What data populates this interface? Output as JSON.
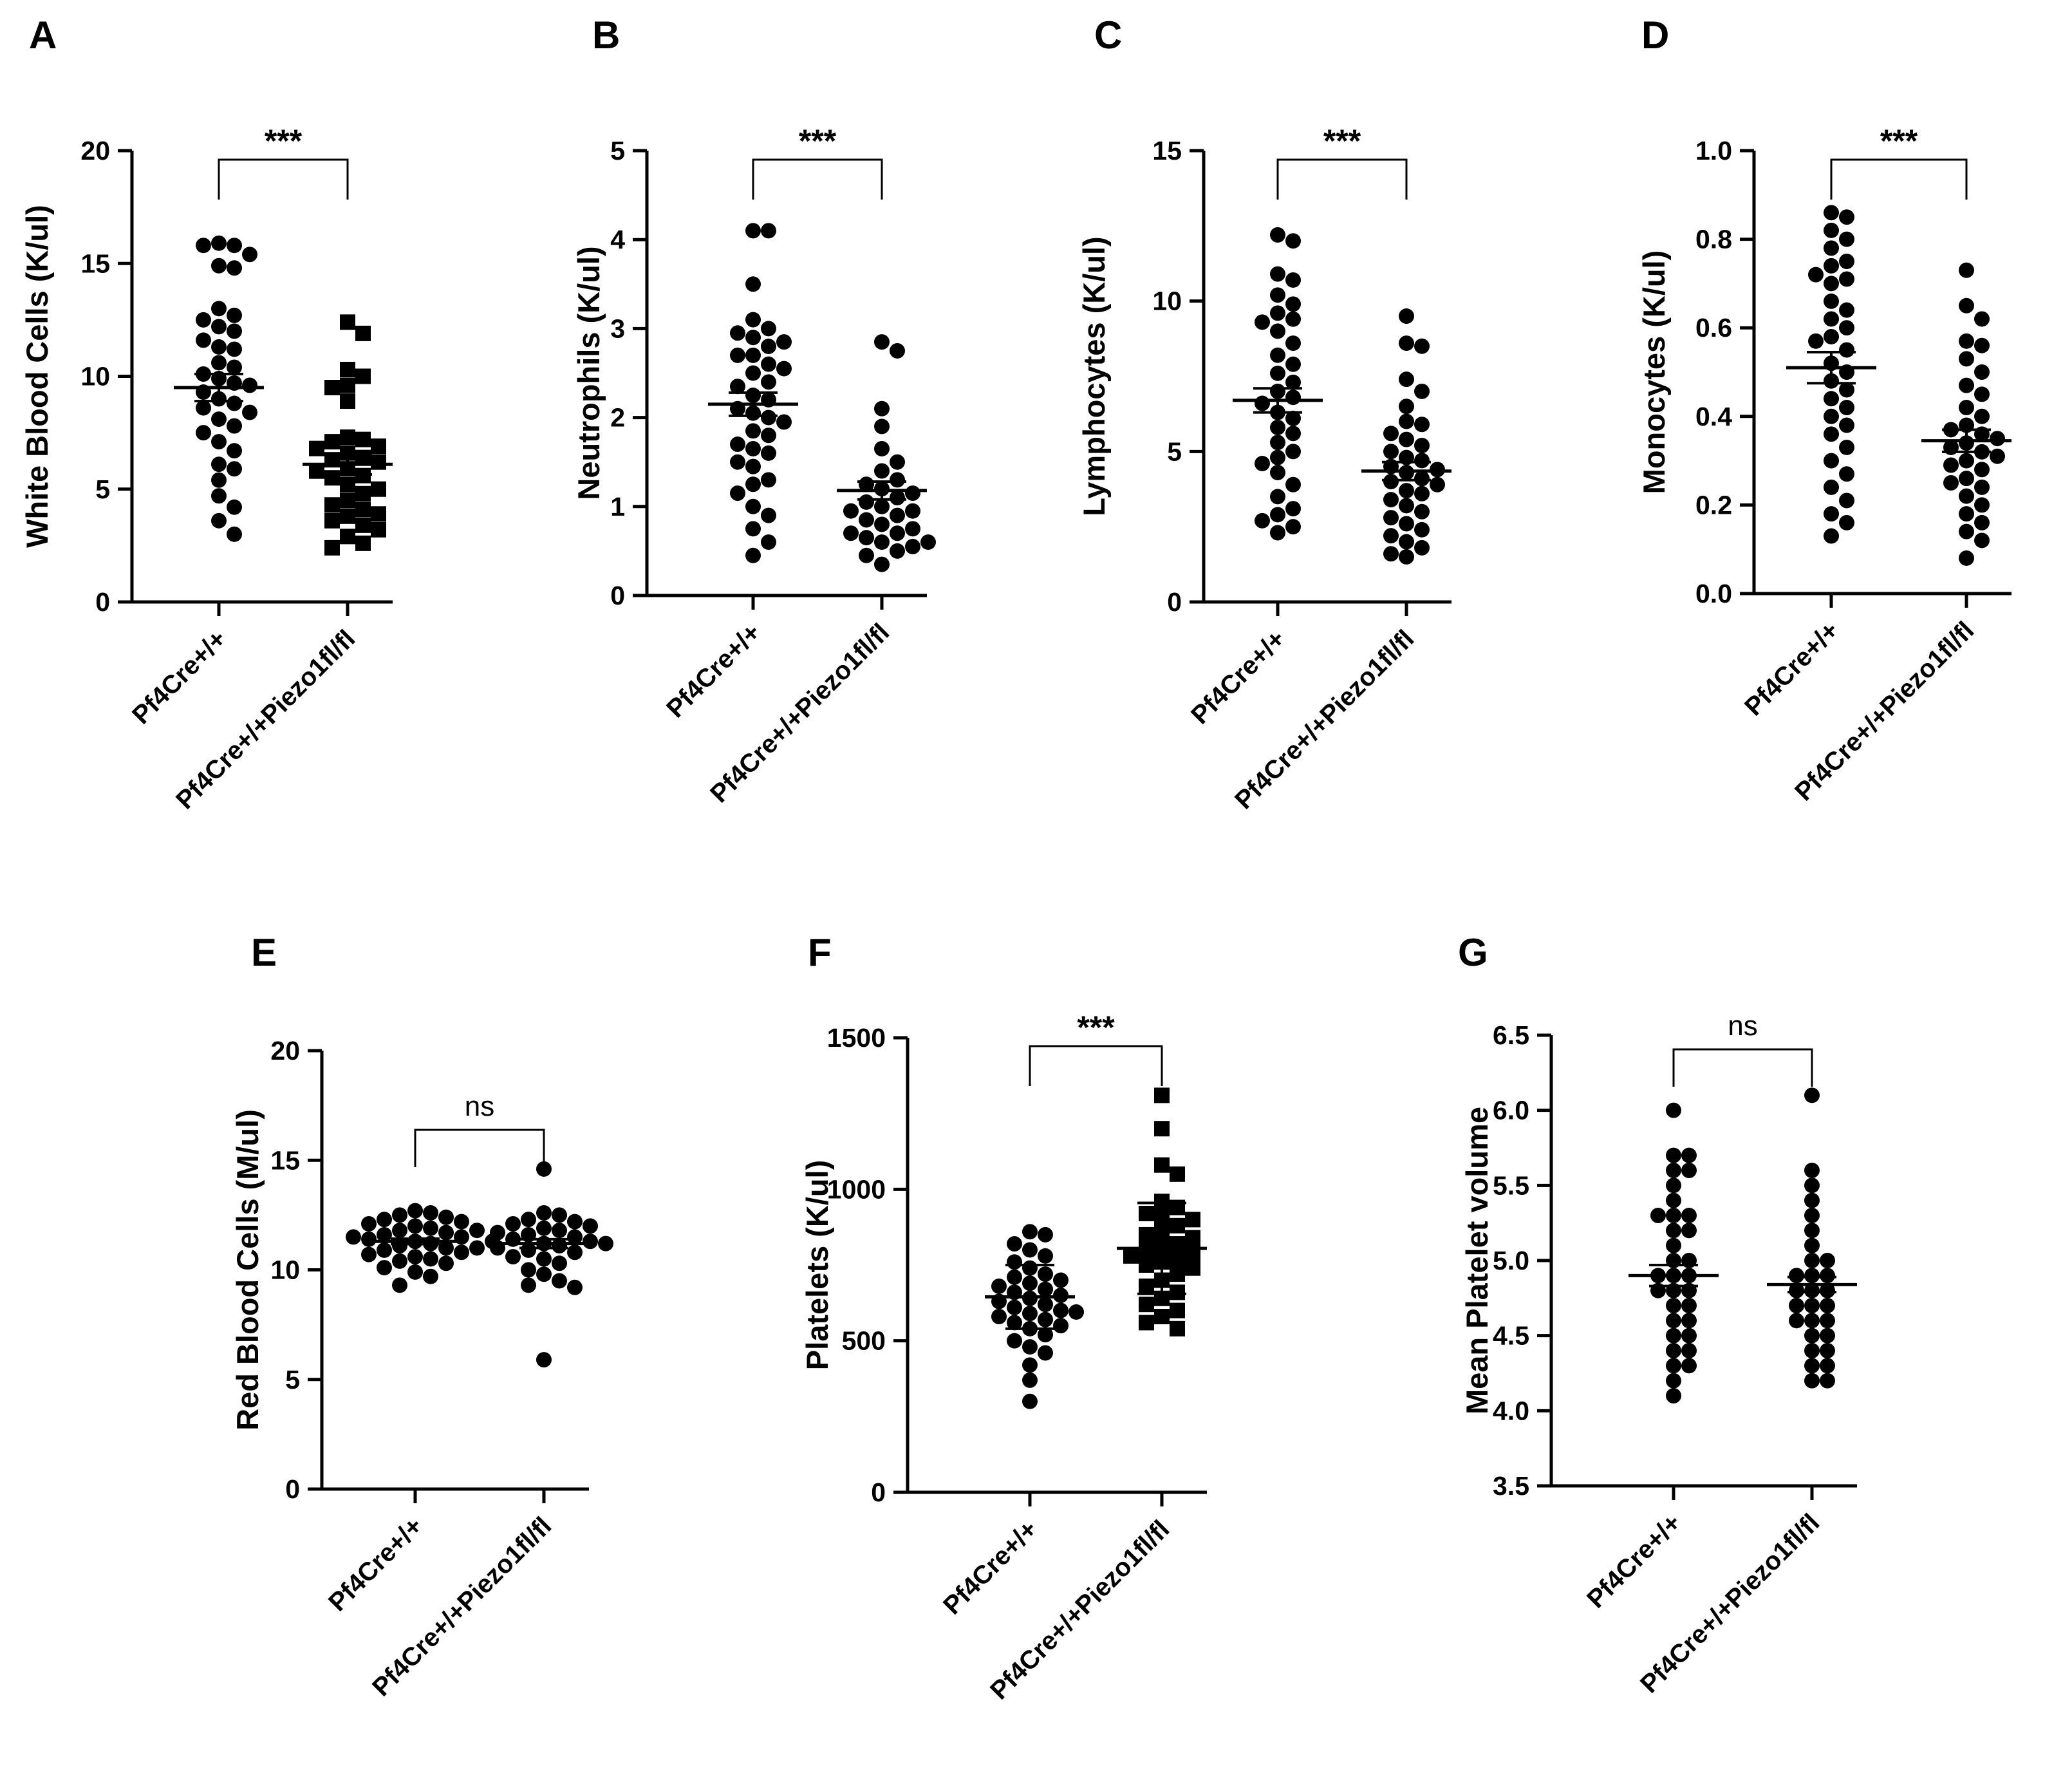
{
  "figure": {
    "categories": [
      "Pf4Cre+/+",
      "Pf4Cre+/+Piezo1fl/fl"
    ]
  },
  "chart_data": [
    {
      "type": "scatter",
      "panel": "A",
      "ylabel": "White Blood Cells (K/ul)",
      "ylim": [
        0,
        20
      ],
      "yticks": [
        0,
        5,
        10,
        15,
        20
      ],
      "significance": "***",
      "categories": [
        "Pf4Cre+/+",
        "Pf4Cre+/+Piezo1fl/fl"
      ],
      "series": [
        {
          "name": "Pf4Cre+/+",
          "marker": "circle",
          "mean": 9.5,
          "sem": 0.6,
          "values": [
            15.9,
            15.8,
            15.8,
            15.4,
            14.9,
            14.8,
            13.0,
            12.7,
            12.5,
            12.2,
            12.0,
            11.6,
            11.3,
            11.2,
            10.6,
            10.4,
            10.1,
            9.9,
            9.7,
            9.6,
            9.3,
            9.0,
            8.8,
            8.6,
            8.4,
            8.1,
            7.8,
            7.5,
            7.1,
            6.7,
            6.1,
            5.9,
            5.4,
            4.7,
            4.2,
            3.6,
            3.0
          ]
        },
        {
          "name": "Pf4Cre+/+Piezo1fl/fl",
          "marker": "square",
          "mean": 6.1,
          "sem": 0.45,
          "values": [
            12.4,
            11.9,
            10.3,
            10.0,
            9.6,
            9.5,
            8.9,
            7.3,
            7.2,
            7.1,
            6.9,
            6.8,
            6.6,
            6.4,
            6.3,
            6.2,
            5.9,
            5.8,
            5.6,
            5.5,
            5.2,
            5.0,
            4.8,
            4.5,
            4.3,
            4.1,
            3.9,
            3.8,
            3.6,
            3.4,
            3.2,
            2.9,
            2.6,
            2.4
          ]
        }
      ]
    },
    {
      "type": "scatter",
      "panel": "B",
      "ylabel": "Neutrophils (K/ul)",
      "ylim": [
        0,
        5
      ],
      "yticks": [
        0,
        1,
        2,
        3,
        4,
        5
      ],
      "significance": "***",
      "categories": [
        "Pf4Cre+/+",
        "Pf4Cre+/+Piezo1fl/fl"
      ],
      "series": [
        {
          "name": "Pf4Cre+/+",
          "marker": "circle",
          "mean": 2.15,
          "sem": 0.13,
          "values": [
            4.1,
            4.1,
            3.5,
            3.1,
            3.0,
            2.95,
            2.9,
            2.85,
            2.8,
            2.7,
            2.7,
            2.6,
            2.55,
            2.5,
            2.4,
            2.35,
            2.25,
            2.2,
            2.1,
            2.05,
            2.0,
            1.95,
            1.85,
            1.8,
            1.7,
            1.65,
            1.6,
            1.5,
            1.45,
            1.3,
            1.25,
            1.15,
            1.0,
            0.9,
            0.75,
            0.6,
            0.45
          ]
        },
        {
          "name": "Pf4Cre+/+Piezo1fl/fl",
          "marker": "circle",
          "mean": 1.18,
          "sem": 0.1,
          "values": [
            2.85,
            2.75,
            2.1,
            1.9,
            1.65,
            1.5,
            1.4,
            1.3,
            1.25,
            1.2,
            1.15,
            1.1,
            1.05,
            1.0,
            0.95,
            0.95,
            0.9,
            0.85,
            0.8,
            0.75,
            0.7,
            0.7,
            0.65,
            0.6,
            0.6,
            0.55,
            0.5,
            0.45,
            0.35
          ]
        }
      ]
    },
    {
      "type": "scatter",
      "panel": "C",
      "ylabel": "Lymphocytes (K/ul)",
      "ylim": [
        0,
        15
      ],
      "yticks": [
        0,
        5,
        10,
        15
      ],
      "significance": "***",
      "categories": [
        "Pf4Cre+/+",
        "Pf4Cre+/+Piezo1fl/fl"
      ],
      "series": [
        {
          "name": "Pf4Cre+/+",
          "marker": "circle",
          "mean": 6.7,
          "sem": 0.4,
          "values": [
            12.2,
            12.0,
            10.9,
            10.7,
            10.2,
            9.9,
            9.6,
            9.4,
            9.3,
            9.0,
            8.6,
            8.2,
            7.9,
            7.6,
            7.3,
            7.0,
            6.8,
            6.6,
            6.3,
            6.1,
            5.8,
            5.6,
            5.3,
            5.0,
            4.8,
            4.6,
            4.3,
            3.9,
            3.5,
            3.1,
            2.9,
            2.7,
            2.5,
            2.3
          ]
        },
        {
          "name": "Pf4Cre+/+Piezo1fl/fl",
          "marker": "circle",
          "mean": 4.35,
          "sem": 0.3,
          "values": [
            9.5,
            8.6,
            8.5,
            7.4,
            7.0,
            6.5,
            6.0,
            5.9,
            5.6,
            5.4,
            5.2,
            5.0,
            4.8,
            4.7,
            4.5,
            4.4,
            4.3,
            4.1,
            4.0,
            3.9,
            3.7,
            3.6,
            3.4,
            3.2,
            3.0,
            2.8,
            2.6,
            2.4,
            2.2,
            2.0,
            1.8,
            1.6,
            1.5
          ]
        }
      ]
    },
    {
      "type": "scatter",
      "panel": "D",
      "ylabel": "Monocytes (K/ul)",
      "ylim": [
        0,
        1.0
      ],
      "yticks": [
        0.0,
        0.2,
        0.4,
        0.6,
        0.8,
        1.0
      ],
      "significance": "***",
      "categories": [
        "Pf4Cre+/+",
        "Pf4Cre+/+Piezo1fl/fl"
      ],
      "series": [
        {
          "name": "Pf4Cre+/+",
          "marker": "circle",
          "mean": 0.51,
          "sem": 0.035,
          "values": [
            0.86,
            0.85,
            0.82,
            0.8,
            0.78,
            0.75,
            0.74,
            0.72,
            0.71,
            0.7,
            0.66,
            0.64,
            0.62,
            0.6,
            0.58,
            0.57,
            0.55,
            0.52,
            0.5,
            0.48,
            0.46,
            0.44,
            0.42,
            0.4,
            0.38,
            0.36,
            0.33,
            0.3,
            0.27,
            0.24,
            0.21,
            0.18,
            0.16,
            0.13
          ]
        },
        {
          "name": "Pf4Cre+/+Piezo1fl/fl",
          "marker": "circle",
          "mean": 0.345,
          "sem": 0.025,
          "values": [
            0.73,
            0.65,
            0.62,
            0.57,
            0.56,
            0.53,
            0.5,
            0.47,
            0.45,
            0.42,
            0.4,
            0.38,
            0.37,
            0.36,
            0.35,
            0.34,
            0.33,
            0.32,
            0.31,
            0.3,
            0.29,
            0.28,
            0.26,
            0.25,
            0.24,
            0.22,
            0.2,
            0.18,
            0.16,
            0.14,
            0.12,
            0.08
          ]
        }
      ]
    },
    {
      "type": "scatter",
      "panel": "E",
      "ylabel": "Red Blood Cells (M/ul)",
      "ylim": [
        0,
        20
      ],
      "yticks": [
        0,
        5,
        10,
        15,
        20
      ],
      "significance": "ns",
      "categories": [
        "Pf4Cre+/+",
        "Pf4Cre+/+Piezo1fl/fl"
      ],
      "series": [
        {
          "name": "Pf4Cre+/+",
          "marker": "circle",
          "mean": 11.3,
          "sem": 0.12,
          "values": [
            12.7,
            12.6,
            12.5,
            12.4,
            12.3,
            12.2,
            12.1,
            12.0,
            11.9,
            11.8,
            11.8,
            11.7,
            11.6,
            11.5,
            11.5,
            11.4,
            11.3,
            11.3,
            11.2,
            11.1,
            11.0,
            11.0,
            10.9,
            10.8,
            10.7,
            10.6,
            10.5,
            10.4,
            10.3,
            10.1,
            9.9,
            9.7,
            9.3
          ]
        },
        {
          "name": "Pf4Cre+/+Piezo1fl/fl",
          "marker": "circle",
          "mean": 11.2,
          "sem": 0.2,
          "values": [
            14.6,
            12.6,
            12.5,
            12.3,
            12.2,
            12.1,
            12.0,
            11.9,
            11.8,
            11.7,
            11.6,
            11.5,
            11.4,
            11.3,
            11.2,
            11.2,
            11.1,
            11.0,
            10.9,
            10.8,
            10.6,
            10.5,
            10.3,
            10.0,
            9.8,
            9.5,
            9.3,
            9.2,
            5.9
          ]
        }
      ]
    },
    {
      "type": "scatter",
      "panel": "F",
      "ylabel": "Platelets (K/ul)",
      "ylim": [
        0,
        1500
      ],
      "yticks": [
        0,
        500,
        1000,
        1500
      ],
      "significance": "***",
      "categories": [
        "Pf4Cre+/+",
        "Pf4Cre+/+Piezo1fl/fl"
      ],
      "series": [
        {
          "name": "Pf4Cre+/+",
          "marker": "circle",
          "mean": 645,
          "sem": 105,
          "values": [
            860,
            850,
            820,
            800,
            780,
            760,
            740,
            720,
            710,
            700,
            690,
            680,
            670,
            660,
            650,
            640,
            630,
            620,
            610,
            600,
            595,
            590,
            580,
            570,
            560,
            550,
            540,
            520,
            500,
            480,
            460,
            420,
            370,
            300
          ]
        },
        {
          "name": "Pf4Cre+/+Piezo1fl/fl",
          "marker": "square",
          "mean": 805,
          "sem": 150,
          "values": [
            1310,
            1200,
            1080,
            1050,
            960,
            940,
            920,
            910,
            900,
            880,
            860,
            850,
            840,
            820,
            810,
            800,
            790,
            780,
            770,
            760,
            750,
            740,
            720,
            700,
            680,
            660,
            640,
            620,
            600,
            580,
            560,
            540
          ]
        }
      ]
    },
    {
      "type": "scatter",
      "panel": "G",
      "ylabel": "Mean Platelet volume",
      "ylim": [
        3.5,
        6.5
      ],
      "yticks": [
        3.5,
        4.0,
        4.5,
        5.0,
        5.5,
        6.0,
        6.5
      ],
      "significance": "ns",
      "categories": [
        "Pf4Cre+/+",
        "Pf4Cre+/+Piezo1fl/fl"
      ],
      "series": [
        {
          "name": "Pf4Cre+/+",
          "marker": "circle",
          "mean": 4.9,
          "sem": 0.07,
          "values": [
            6.0,
            5.7,
            5.7,
            5.6,
            5.6,
            5.5,
            5.4,
            5.3,
            5.3,
            5.3,
            5.2,
            5.2,
            5.1,
            5.0,
            5.0,
            4.9,
            4.9,
            4.9,
            4.8,
            4.8,
            4.8,
            4.7,
            4.7,
            4.6,
            4.6,
            4.5,
            4.5,
            4.4,
            4.4,
            4.3,
            4.3,
            4.2,
            4.1
          ]
        },
        {
          "name": "Pf4Cre+/+Piezo1fl/fl",
          "marker": "circle",
          "mean": 4.84,
          "sem": 0.05,
          "values": [
            6.1,
            5.6,
            5.5,
            5.4,
            5.3,
            5.2,
            5.1,
            5.0,
            5.0,
            4.9,
            4.9,
            4.9,
            4.8,
            4.8,
            4.8,
            4.7,
            4.7,
            4.7,
            4.6,
            4.6,
            4.6,
            4.5,
            4.5,
            4.4,
            4.4,
            4.3,
            4.3,
            4.2,
            4.2
          ]
        }
      ]
    }
  ]
}
